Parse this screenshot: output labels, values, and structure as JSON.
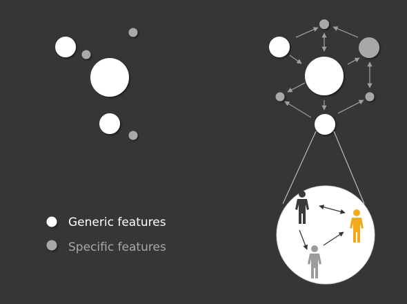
{
  "legend": {
    "generic_label": "Generic features",
    "specific_label": "Specific features"
  },
  "colors": {
    "background": "#363636",
    "generic": "#ffffff",
    "specific": "#a8a8a8",
    "arrow": "#9a9a9a",
    "person_dark": "#3a3a3a",
    "person_orange": "#f2aa1b",
    "person_gray": "#9b9b9b",
    "zoom_outline": "#bdbdbd"
  },
  "icons": {
    "person": "person-icon",
    "arrow": "double-arrow"
  }
}
